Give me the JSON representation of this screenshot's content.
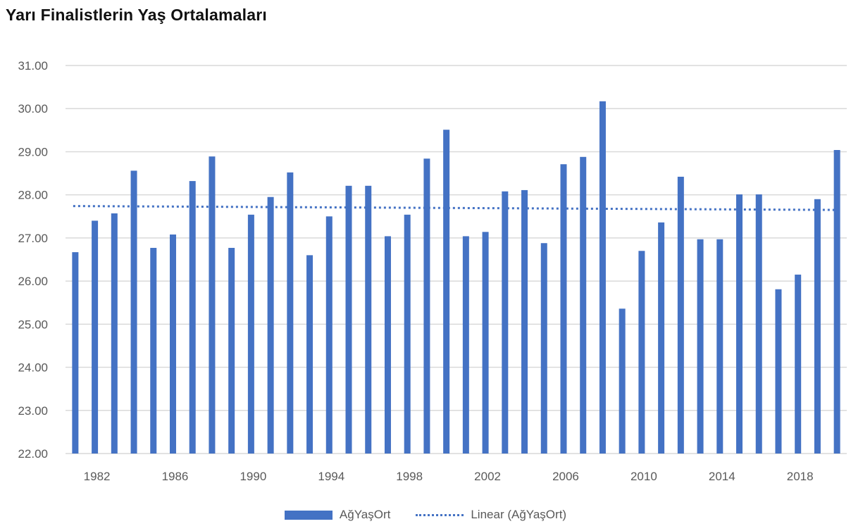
{
  "chart": {
    "title": "Yarı Finalistlerin Yaş Ortalamaları",
    "legend": {
      "series_label": "AğYaşOrt",
      "trend_label": "Linear (AğYaşOrt)"
    }
  },
  "colors": {
    "bar": "#4472C4",
    "trend": "#4472C4",
    "grid": "#D9D9D9",
    "axis_text": "#595959",
    "title": "#111111"
  },
  "chart_data": {
    "type": "bar",
    "title": "Yarı Finalistlerin Yaş Ortalamaları",
    "xlabel": "",
    "ylabel": "",
    "ylim": [
      22,
      31
    ],
    "yticks": [
      "22.00",
      "23.00",
      "24.00",
      "25.00",
      "26.00",
      "27.00",
      "28.00",
      "29.00",
      "30.00",
      "31.00"
    ],
    "xtick_labels": [
      "1982",
      "1986",
      "1990",
      "1994",
      "1998",
      "2002",
      "2006",
      "2010",
      "2014",
      "2018"
    ],
    "grid": true,
    "legend_position": "bottom",
    "categories": [
      1981,
      1982,
      1983,
      1984,
      1985,
      1986,
      1987,
      1988,
      1989,
      1990,
      1991,
      1992,
      1993,
      1994,
      1995,
      1996,
      1997,
      1998,
      1999,
      2000,
      2001,
      2002,
      2003,
      2004,
      2005,
      2006,
      2007,
      2008,
      2009,
      2010,
      2011,
      2012,
      2013,
      2014,
      2015,
      2016,
      2017,
      2018,
      2019,
      2020
    ],
    "series": [
      {
        "name": "AğYaşOrt",
        "type": "bar",
        "values": [
          26.67,
          27.4,
          27.57,
          28.56,
          26.77,
          27.08,
          28.32,
          28.89,
          26.77,
          27.54,
          27.95,
          28.52,
          26.6,
          27.5,
          28.21,
          28.21,
          27.04,
          27.54,
          28.84,
          29.51,
          27.04,
          27.14,
          28.08,
          28.11,
          26.88,
          28.71,
          28.88,
          30.17,
          25.36,
          26.7,
          27.36,
          28.42,
          26.97,
          26.97,
          28.01,
          28.01,
          25.81,
          26.15,
          27.9,
          29.04
        ]
      },
      {
        "name": "Linear (AğYaşOrt)",
        "type": "line",
        "style": "dotted",
        "start": 27.74,
        "end": 27.65
      }
    ]
  }
}
